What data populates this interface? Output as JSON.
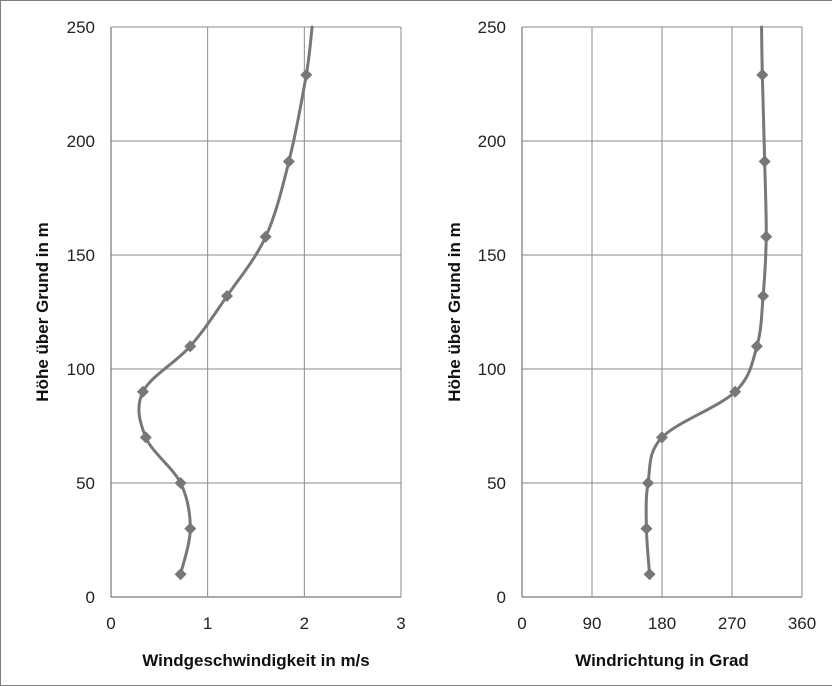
{
  "chart_data": [
    {
      "type": "line",
      "xlabel": "Windgeschwindigkeit in m/s",
      "ylabel": "Höhe über Grund in m",
      "xlim": [
        0,
        3
      ],
      "ylim": [
        0,
        250
      ],
      "xticks": [
        0,
        1,
        2,
        3
      ],
      "yticks": [
        0,
        50,
        100,
        150,
        200,
        250
      ],
      "grid": true,
      "series": [
        {
          "color": "#777777",
          "marker": "diamond",
          "x": [
            0.72,
            0.82,
            0.72,
            0.36,
            0.33,
            0.82,
            1.2,
            1.6,
            1.84,
            2.02
          ],
          "y": [
            10,
            30,
            50,
            70,
            90,
            110,
            132,
            158,
            191,
            229
          ],
          "line_end": {
            "x": 2.08,
            "y": 250
          }
        }
      ]
    },
    {
      "type": "line",
      "xlabel": "Windrichtung in Grad",
      "ylabel": "Höhe über Grund in m",
      "xlim": [
        0,
        360
      ],
      "ylim": [
        0,
        250
      ],
      "xticks": [
        0,
        90,
        180,
        270,
        360
      ],
      "yticks": [
        0,
        50,
        100,
        150,
        200,
        250
      ],
      "grid": true,
      "series": [
        {
          "color": "#777777",
          "marker": "diamond",
          "x": [
            164,
            160,
            162,
            180,
            274,
            302,
            310,
            314,
            312,
            309
          ],
          "y": [
            10,
            30,
            50,
            70,
            90,
            110,
            132,
            158,
            191,
            229
          ],
          "line_end": {
            "x": 308,
            "y": 250
          }
        }
      ]
    }
  ]
}
